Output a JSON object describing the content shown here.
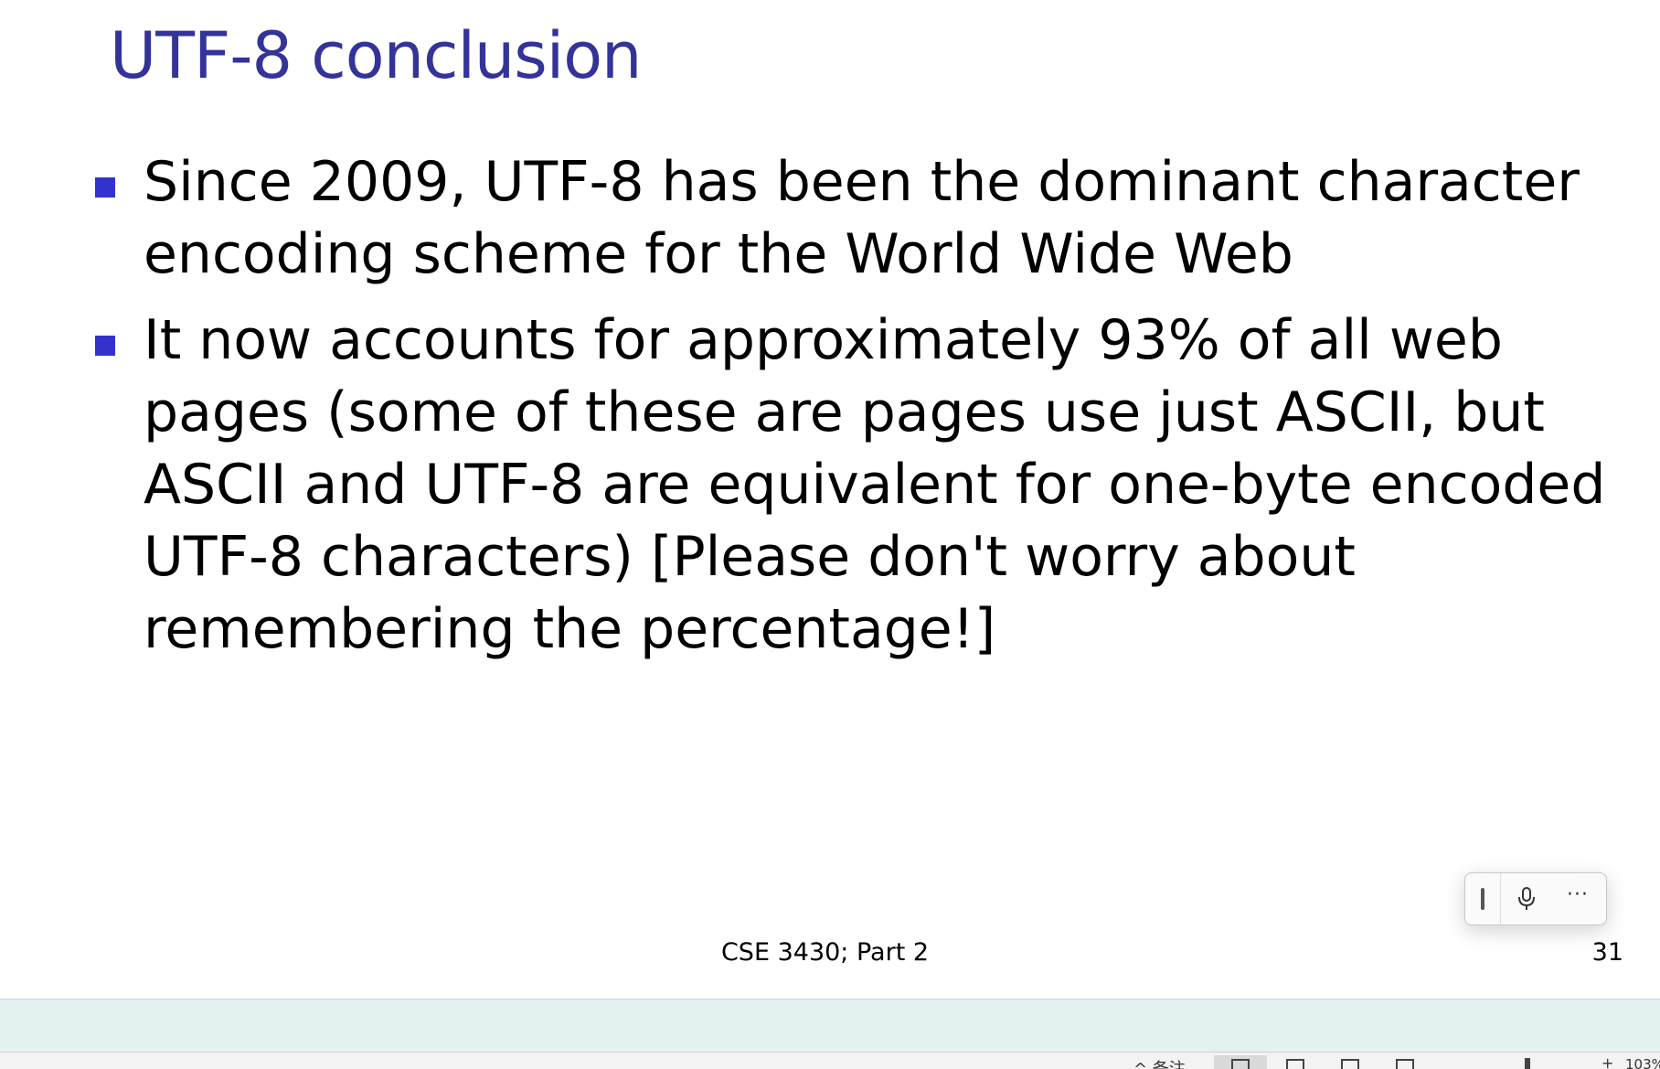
{
  "slide": {
    "title": "UTF-8 conclusion",
    "bullets": [
      {
        "lines": [
          "Since 2009, UTF-8 has been the dominant character",
          "encoding scheme for the World Wide Web"
        ]
      },
      {
        "lines": [
          "It now accounts for approximately 93% of all web",
          "pages (some of these are pages use just ASCII, but",
          "ASCII and UTF-8 are equivalent for one-byte encoded",
          "UTF-8 characters) [Please don't worry about",
          "remembering the percentage!]"
        ]
      }
    ],
    "footer": "CSE 3430; Part 2",
    "page_number": "31"
  },
  "floating_toolbar": {
    "icons": [
      "grip-handle-icon",
      "microphone-icon",
      "more-options-icon"
    ],
    "more_label": "···"
  },
  "status_bar": {
    "notes_label": "^ 备注",
    "zoom_plus": "+",
    "zoom_level": "103%"
  },
  "colors": {
    "title": "#33339a",
    "bullet": "#3333cc",
    "notes_pane": "#e4f1f1"
  }
}
